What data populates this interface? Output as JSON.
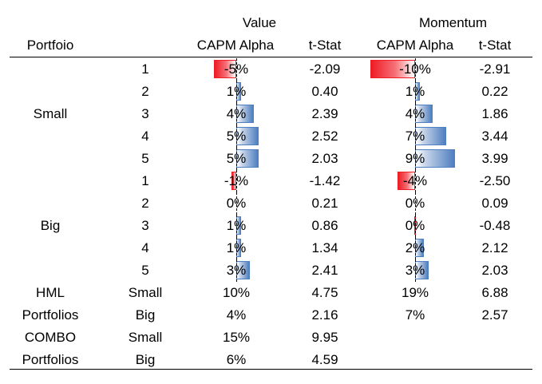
{
  "header": {
    "group_value": "Value",
    "group_momentum": "Momentum",
    "col_portfolio": "Portfoio",
    "col_capm_alpha": "CAPM Alpha",
    "col_tstat": "t-Stat"
  },
  "groups": [
    {
      "label": "Small",
      "rows": [
        {
          "index": "1",
          "v_alpha": -5,
          "v_alpha_text": "-5%",
          "v_t": "-2.09",
          "m_alpha": -10,
          "m_alpha_text": "-10%",
          "m_t": "-2.91"
        },
        {
          "index": "2",
          "v_alpha": 1,
          "v_alpha_text": "1%",
          "v_t": "0.40",
          "m_alpha": 1,
          "m_alpha_text": "1%",
          "m_t": "0.22"
        },
        {
          "index": "3",
          "v_alpha": 4,
          "v_alpha_text": "4%",
          "v_t": "2.39",
          "m_alpha": 4,
          "m_alpha_text": "4%",
          "m_t": "1.86"
        },
        {
          "index": "4",
          "v_alpha": 5,
          "v_alpha_text": "5%",
          "v_t": "2.52",
          "m_alpha": 7,
          "m_alpha_text": "7%",
          "m_t": "3.44"
        },
        {
          "index": "5",
          "v_alpha": 5,
          "v_alpha_text": "5%",
          "v_t": "2.03",
          "m_alpha": 9,
          "m_alpha_text": "9%",
          "m_t": "3.99"
        }
      ]
    },
    {
      "label": "Big",
      "rows": [
        {
          "index": "1",
          "v_alpha": -1,
          "v_alpha_text": "-1%",
          "v_t": "-1.42",
          "m_alpha": -4,
          "m_alpha_text": "-4%",
          "m_t": "-2.50"
        },
        {
          "index": "2",
          "v_alpha": 0,
          "v_alpha_text": "0%",
          "v_t": "0.21",
          "m_alpha": 0,
          "m_alpha_text": "0%",
          "m_t": "0.09"
        },
        {
          "index": "3",
          "v_alpha": 1,
          "v_alpha_text": "1%",
          "v_t": "0.86",
          "m_alpha": -0.2,
          "m_alpha_text": "0%",
          "m_t": "-0.48"
        },
        {
          "index": "4",
          "v_alpha": 1,
          "v_alpha_text": "1%",
          "v_t": "1.34",
          "m_alpha": 2,
          "m_alpha_text": "2%",
          "m_t": "2.12"
        },
        {
          "index": "5",
          "v_alpha": 3,
          "v_alpha_text": "3%",
          "v_t": "2.41",
          "m_alpha": 3,
          "m_alpha_text": "3%",
          "m_t": "2.03"
        }
      ]
    }
  ],
  "summary": [
    {
      "label": "HML",
      "sub": "Small",
      "v_alpha_text": "10%",
      "v_t": "4.75",
      "m_alpha_text": "19%",
      "m_t": "6.88"
    },
    {
      "label": "Portfolios",
      "sub": "Big",
      "v_alpha_text": "4%",
      "v_t": "2.16",
      "m_alpha_text": "7%",
      "m_t": "2.57"
    },
    {
      "label": "COMBO",
      "sub": "Small",
      "v_alpha_text": "15%",
      "v_t": "9.95",
      "m_alpha_text": "",
      "m_t": ""
    },
    {
      "label": "Portfolios",
      "sub": "Big",
      "v_alpha_text": "6%",
      "v_t": "4.59",
      "m_alpha_text": "",
      "m_t": ""
    }
  ],
  "colors": {
    "positive_bar": "#4f7fc0",
    "negative_bar": "#ee1c25"
  }
}
